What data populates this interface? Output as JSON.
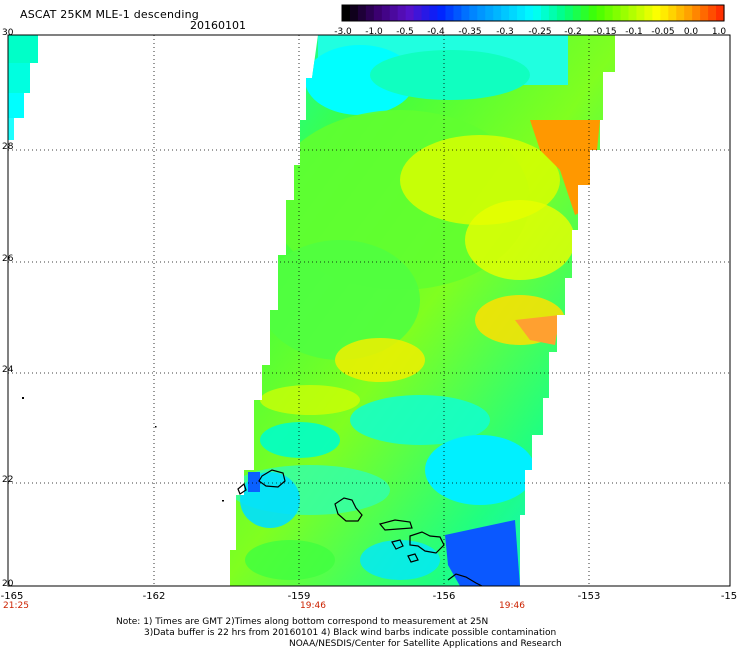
{
  "header": {
    "title": "ASCAT 25KM MLE-1 descending",
    "date": "20160101"
  },
  "colorbar": {
    "labels": [
      "-3.0",
      "-1.0",
      "-0.5",
      "-0.4",
      "-0.35",
      "-0.3",
      "-0.25",
      "-0.2",
      "-0.15",
      "-0.1",
      "-0.05",
      "0.0",
      "1.0"
    ],
    "colors": [
      "#000000",
      "#3a006e",
      "#5a10c8",
      "#0020ff",
      "#0080ff",
      "#00c0ff",
      "#00ffff",
      "#00ff80",
      "#40ff00",
      "#a0ff00",
      "#ffff00",
      "#ffa000",
      "#ff3000"
    ]
  },
  "axes": {
    "lat_labels": [
      "30",
      "28",
      "26",
      "24",
      "22",
      "20"
    ],
    "lon_labels": [
      "-165",
      "-162",
      "-159",
      "-156",
      "-153",
      "-15"
    ],
    "time_labels": [
      "21:25",
      "19:46",
      "19:46"
    ]
  },
  "footer": {
    "note_line1": "Note: 1) Times are GMT 2)Times along bottom correspond to measurement at 25N",
    "note_line2": "3)Data buffer is 22 hrs from 20160101 4) Black wind barbs indicate possible contamination",
    "credit": "NOAA/NESDIS/Center for Satellite Applications and Research"
  }
}
